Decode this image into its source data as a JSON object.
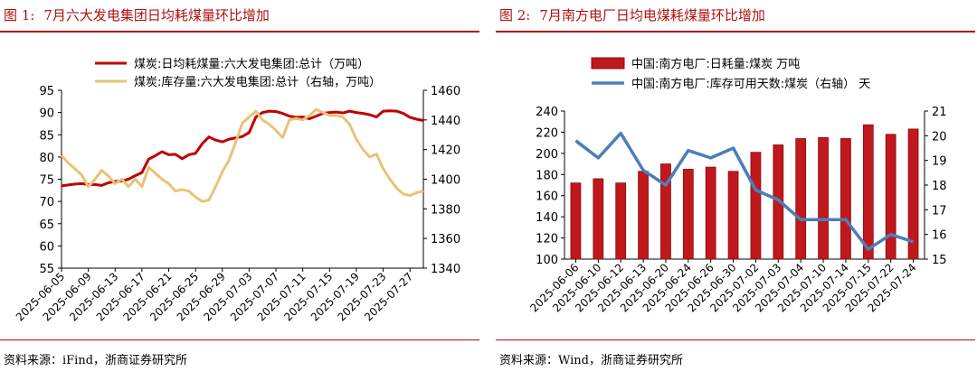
{
  "left": {
    "figure_number": "图 1:",
    "title": "7月六大发电集团日均耗煤量环比增加",
    "source": "资料来源：iFind，浙商证券研究所"
  },
  "right": {
    "figure_number": "图 2:",
    "title": "7月南方电厂日均电煤耗煤量环比增加",
    "source": "资料来源：Wind，浙商证券研究所"
  },
  "colors": {
    "title_red": "#b01010",
    "series_red": "#c00000",
    "series_tan": "#e6c478",
    "bar_red": "#c0181c",
    "series_blue": "#4a7fb8"
  },
  "chart_data": [
    {
      "type": "line",
      "x": [
        "2025-06-05",
        "2025-06-06",
        "2025-06-07",
        "2025-06-08",
        "2025-06-09",
        "2025-06-10",
        "2025-06-11",
        "2025-06-12",
        "2025-06-13",
        "2025-06-14",
        "2025-06-15",
        "2025-06-16",
        "2025-06-17",
        "2025-06-18",
        "2025-06-19",
        "2025-06-20",
        "2025-06-21",
        "2025-06-22",
        "2025-06-23",
        "2025-06-24",
        "2025-06-25",
        "2025-06-26",
        "2025-06-27",
        "2025-06-28",
        "2025-06-29",
        "2025-06-30",
        "2025-07-01",
        "2025-07-02",
        "2025-07-03",
        "2025-07-04",
        "2025-07-05",
        "2025-07-06",
        "2025-07-07",
        "2025-07-08",
        "2025-07-09",
        "2025-07-10",
        "2025-07-11",
        "2025-07-12",
        "2025-07-13",
        "2025-07-14",
        "2025-07-15",
        "2025-07-16",
        "2025-07-17",
        "2025-07-18",
        "2025-07-19",
        "2025-07-20",
        "2025-07-21",
        "2025-07-22",
        "2025-07-23",
        "2025-07-24",
        "2025-07-25",
        "2025-07-26",
        "2025-07-27",
        "2025-07-28",
        "2025-07-29"
      ],
      "x_tick_labels": [
        "2025-06-05",
        "2025-06-09",
        "2025-06-13",
        "2025-06-17",
        "2025-06-21",
        "2025-06-25",
        "2025-06-29",
        "2025-07-03",
        "2025-07-07",
        "2025-07-11",
        "2025-07-15",
        "2025-07-19",
        "2025-07-23",
        "2025-07-27"
      ],
      "series": [
        {
          "name": "煤炭:日均耗煤量:六大发电集团:总计（万吨）",
          "axis": "left",
          "values": [
            73.5,
            73.7,
            73.9,
            74.0,
            73.8,
            73.8,
            73.6,
            74.2,
            74.5,
            74.6,
            75.0,
            75.8,
            76.5,
            79.5,
            80.3,
            81.2,
            80.5,
            80.6,
            79.6,
            80.5,
            80.8,
            83.0,
            84.5,
            83.8,
            83.4,
            84.0,
            84.3,
            84.6,
            85.5,
            89.0,
            90.0,
            90.3,
            90.2,
            89.8,
            89.2,
            88.9,
            89.0,
            88.6,
            89.2,
            89.8,
            90.0,
            90.1,
            89.9,
            90.3,
            90.0,
            89.8,
            89.5,
            89.0,
            90.3,
            90.4,
            90.3,
            89.8,
            88.9,
            88.5,
            88.2
          ]
        },
        {
          "name": "煤炭:库存量:六大发电集团:总计（右轴，万吨）",
          "axis": "right",
          "values": [
            1416,
            1411,
            1407,
            1403,
            1395,
            1400,
            1406,
            1402,
            1397,
            1400,
            1395,
            1400,
            1395,
            1408,
            1404,
            1400,
            1397,
            1392,
            1393,
            1392,
            1388,
            1385,
            1386,
            1395,
            1405,
            1413,
            1425,
            1438,
            1442,
            1446,
            1440,
            1437,
            1433,
            1428,
            1440,
            1441,
            1440,
            1443,
            1447,
            1445,
            1443,
            1443,
            1442,
            1437,
            1427,
            1420,
            1415,
            1417,
            1407,
            1400,
            1394,
            1390,
            1389,
            1391,
            1392
          ]
        }
      ],
      "y_left": {
        "min": 55,
        "max": 95,
        "ticks": [
          55,
          60,
          65,
          70,
          75,
          80,
          85,
          90,
          95
        ]
      },
      "y_right": {
        "min": 1340,
        "max": 1460,
        "ticks": [
          1340,
          1360,
          1380,
          1400,
          1420,
          1440,
          1460
        ]
      },
      "legend_position": "top"
    },
    {
      "type": "bar",
      "categories": [
        "2025-06-06",
        "2025-06-10",
        "2025-06-12",
        "2025-06-13",
        "2025-06-20",
        "2025-06-24",
        "2025-06-26",
        "2025-06-30",
        "2025-07-02",
        "2025-07-03",
        "2025-07-04",
        "2025-07-10",
        "2025-07-14",
        "2025-07-15",
        "2025-07-22",
        "2025-07-24"
      ],
      "series": [
        {
          "name": "中国:南方电厂:日耗量:煤炭 万吨",
          "axis": "left",
          "type": "bar",
          "values": [
            172,
            176,
            172,
            183,
            190,
            185,
            187,
            183,
            201,
            208,
            214,
            215,
            214,
            227,
            218,
            223
          ]
        },
        {
          "name": "中国:南方电厂:库存可用天数:煤炭（右轴） 天",
          "axis": "right",
          "type": "line",
          "values": [
            19.8,
            19.1,
            20.1,
            18.6,
            18.0,
            19.4,
            19.1,
            19.5,
            17.8,
            17.4,
            16.6,
            16.6,
            16.6,
            15.4,
            16.0,
            15.7
          ]
        }
      ],
      "y_left": {
        "min": 100,
        "max": 240,
        "ticks": [
          100,
          120,
          140,
          160,
          180,
          200,
          220,
          240
        ]
      },
      "y_right": {
        "min": 15,
        "max": 21,
        "ticks": [
          15,
          16,
          17,
          18,
          19,
          20,
          21
        ]
      },
      "legend_position": "top"
    }
  ]
}
